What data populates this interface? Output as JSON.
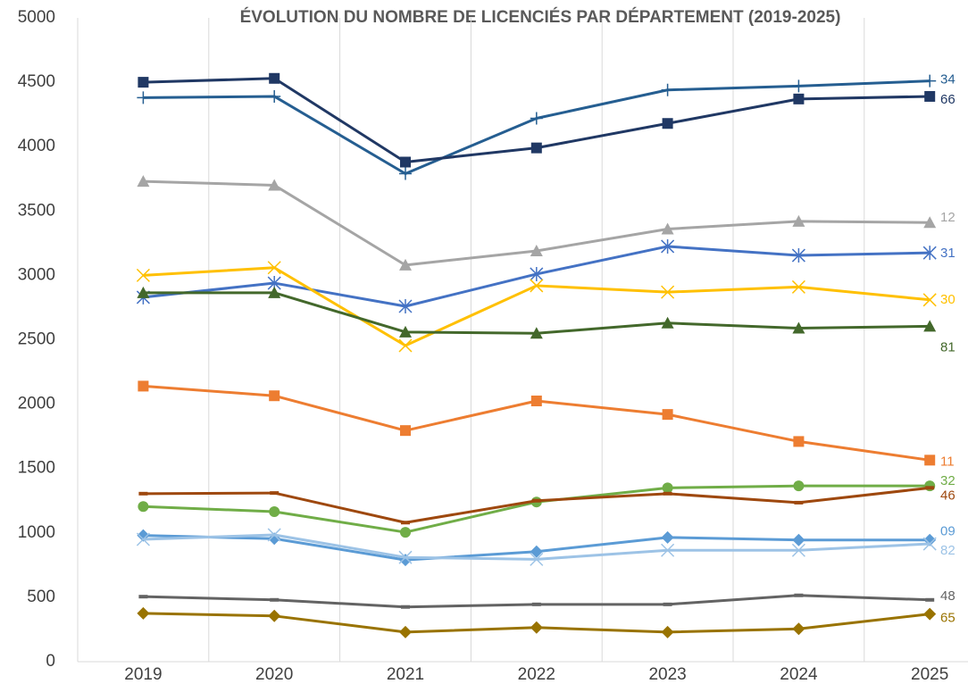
{
  "chart_data": {
    "type": "line",
    "title": "ÉVOLUTION DU NOMBRE DE LICENCIÉS PAR DÉPARTEMENT (2019-2025)",
    "categories": [
      "2019",
      "2020",
      "2021",
      "2022",
      "2023",
      "2024",
      "2025"
    ],
    "ylim": [
      0,
      5000
    ],
    "yticks": [
      0,
      500,
      1000,
      1500,
      2000,
      2500,
      3000,
      3500,
      4000,
      4500,
      5000
    ],
    "grid": "vertical",
    "series": [
      {
        "name": "34",
        "color": "#255e91",
        "marker": "plus",
        "values": [
          4380,
          4390,
          3790,
          4220,
          4440,
          4470,
          4510
        ]
      },
      {
        "name": "66",
        "color": "#203864",
        "marker": "square",
        "values": [
          4500,
          4530,
          3880,
          3990,
          4180,
          4370,
          4390
        ]
      },
      {
        "name": "12",
        "color": "#a5a5a5",
        "marker": "triangle",
        "values": [
          3730,
          3700,
          3080,
          3190,
          3360,
          3420,
          3410
        ]
      },
      {
        "name": "31",
        "color": "#4472c4",
        "marker": "asterisk",
        "values": [
          2830,
          2940,
          2760,
          3010,
          3225,
          3155,
          3175
        ]
      },
      {
        "name": "30",
        "color": "#ffc000",
        "marker": "x",
        "values": [
          3000,
          3060,
          2455,
          2920,
          2870,
          2910,
          2810
        ]
      },
      {
        "name": "81",
        "color": "#43682b",
        "marker": "triangle",
        "values": [
          2865,
          2865,
          2560,
          2550,
          2630,
          2590,
          2605
        ]
      },
      {
        "name": "11",
        "color": "#ed7d31",
        "marker": "square",
        "values": [
          2140,
          2065,
          1795,
          2025,
          1920,
          1710,
          1565
        ]
      },
      {
        "name": "32",
        "color": "#70ad47",
        "marker": "circle",
        "values": [
          1205,
          1165,
          1005,
          1240,
          1350,
          1365,
          1365
        ]
      },
      {
        "name": "46",
        "color": "#9e480e",
        "marker": "dash",
        "values": [
          1305,
          1310,
          1080,
          1250,
          1305,
          1235,
          1350
        ]
      },
      {
        "name": "09",
        "color": "#5b9bd5",
        "marker": "diamond",
        "values": [
          980,
          955,
          790,
          855,
          965,
          945,
          945
        ]
      },
      {
        "name": "82",
        "color": "#9dc3e6",
        "marker": "x",
        "values": [
          950,
          985,
          810,
          795,
          865,
          865,
          915
        ]
      },
      {
        "name": "48",
        "color": "#636363",
        "marker": "dash",
        "values": [
          505,
          480,
          425,
          445,
          445,
          515,
          480
        ]
      },
      {
        "name": "65",
        "color": "#997300",
        "marker": "diamond",
        "values": [
          375,
          355,
          230,
          265,
          230,
          255,
          370
        ]
      }
    ]
  }
}
